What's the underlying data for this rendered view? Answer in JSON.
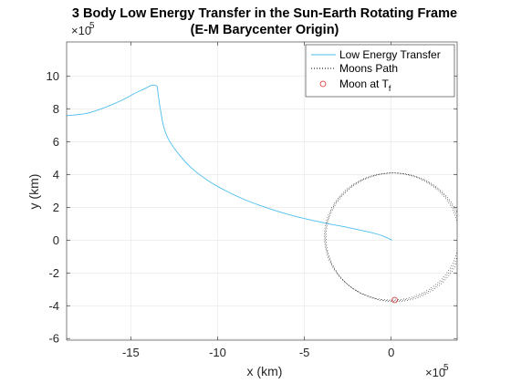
{
  "chart_data": {
    "type": "line",
    "title": "3 Body Low Energy Transfer in the Sun-Earth Rotating Frame",
    "subtitle": "(E-M Barycenter Origin)",
    "xlabel": "x (km)",
    "ylabel": "y (km)",
    "x_exponent_base": "×10",
    "x_exponent_power": "5",
    "y_exponent_base": "×10",
    "y_exponent_power": "5",
    "xlim": [
      -18.7,
      3.8
    ],
    "ylim": [
      -6.1,
      12.1
    ],
    "xticks": [
      -15,
      -10,
      -5,
      0
    ],
    "yticks": [
      -6,
      -4,
      -2,
      0,
      2,
      4,
      6,
      8,
      10
    ],
    "grid": true,
    "legend_position": "top-right",
    "colors": {
      "transfer": "#4DBEEE",
      "moon_path": "#000000",
      "moon_marker": "#D62728"
    },
    "series": [
      {
        "name": "Low Energy Transfer",
        "style": "solid",
        "x": [
          -18.7,
          -17.5,
          -16.5,
          -15.5,
          -14.8,
          -14.2,
          -13.8,
          -13.5,
          -13.45,
          -13.4,
          -13.3,
          -13.1,
          -12.8,
          -12.2,
          -11.5,
          -10.5,
          -9.5,
          -8.5,
          -7.5,
          -6.5,
          -5.5,
          -4.5,
          -3.5,
          -2.5,
          -1.5,
          -0.8,
          -0.3,
          0.05
        ],
        "y": [
          7.6,
          7.75,
          8.1,
          8.55,
          8.95,
          9.25,
          9.45,
          9.4,
          9.1,
          8.7,
          8.0,
          6.9,
          6.1,
          5.2,
          4.4,
          3.6,
          3.0,
          2.5,
          2.1,
          1.75,
          1.45,
          1.2,
          0.98,
          0.78,
          0.55,
          0.37,
          0.18,
          0.0
        ]
      },
      {
        "name": "Moons Path",
        "style": "dotted",
        "center": [
          0.1,
          0.2
        ],
        "radius": 3.9,
        "bands": 3
      },
      {
        "name": "Moon at Tf",
        "style": "marker",
        "x": [
          0.2
        ],
        "y": [
          -3.65
        ]
      }
    ],
    "legend": [
      {
        "label": "Low Energy Transfer"
      },
      {
        "label": "Moons Path"
      },
      {
        "label_main": "Moon at T",
        "label_sub": "f"
      }
    ]
  }
}
